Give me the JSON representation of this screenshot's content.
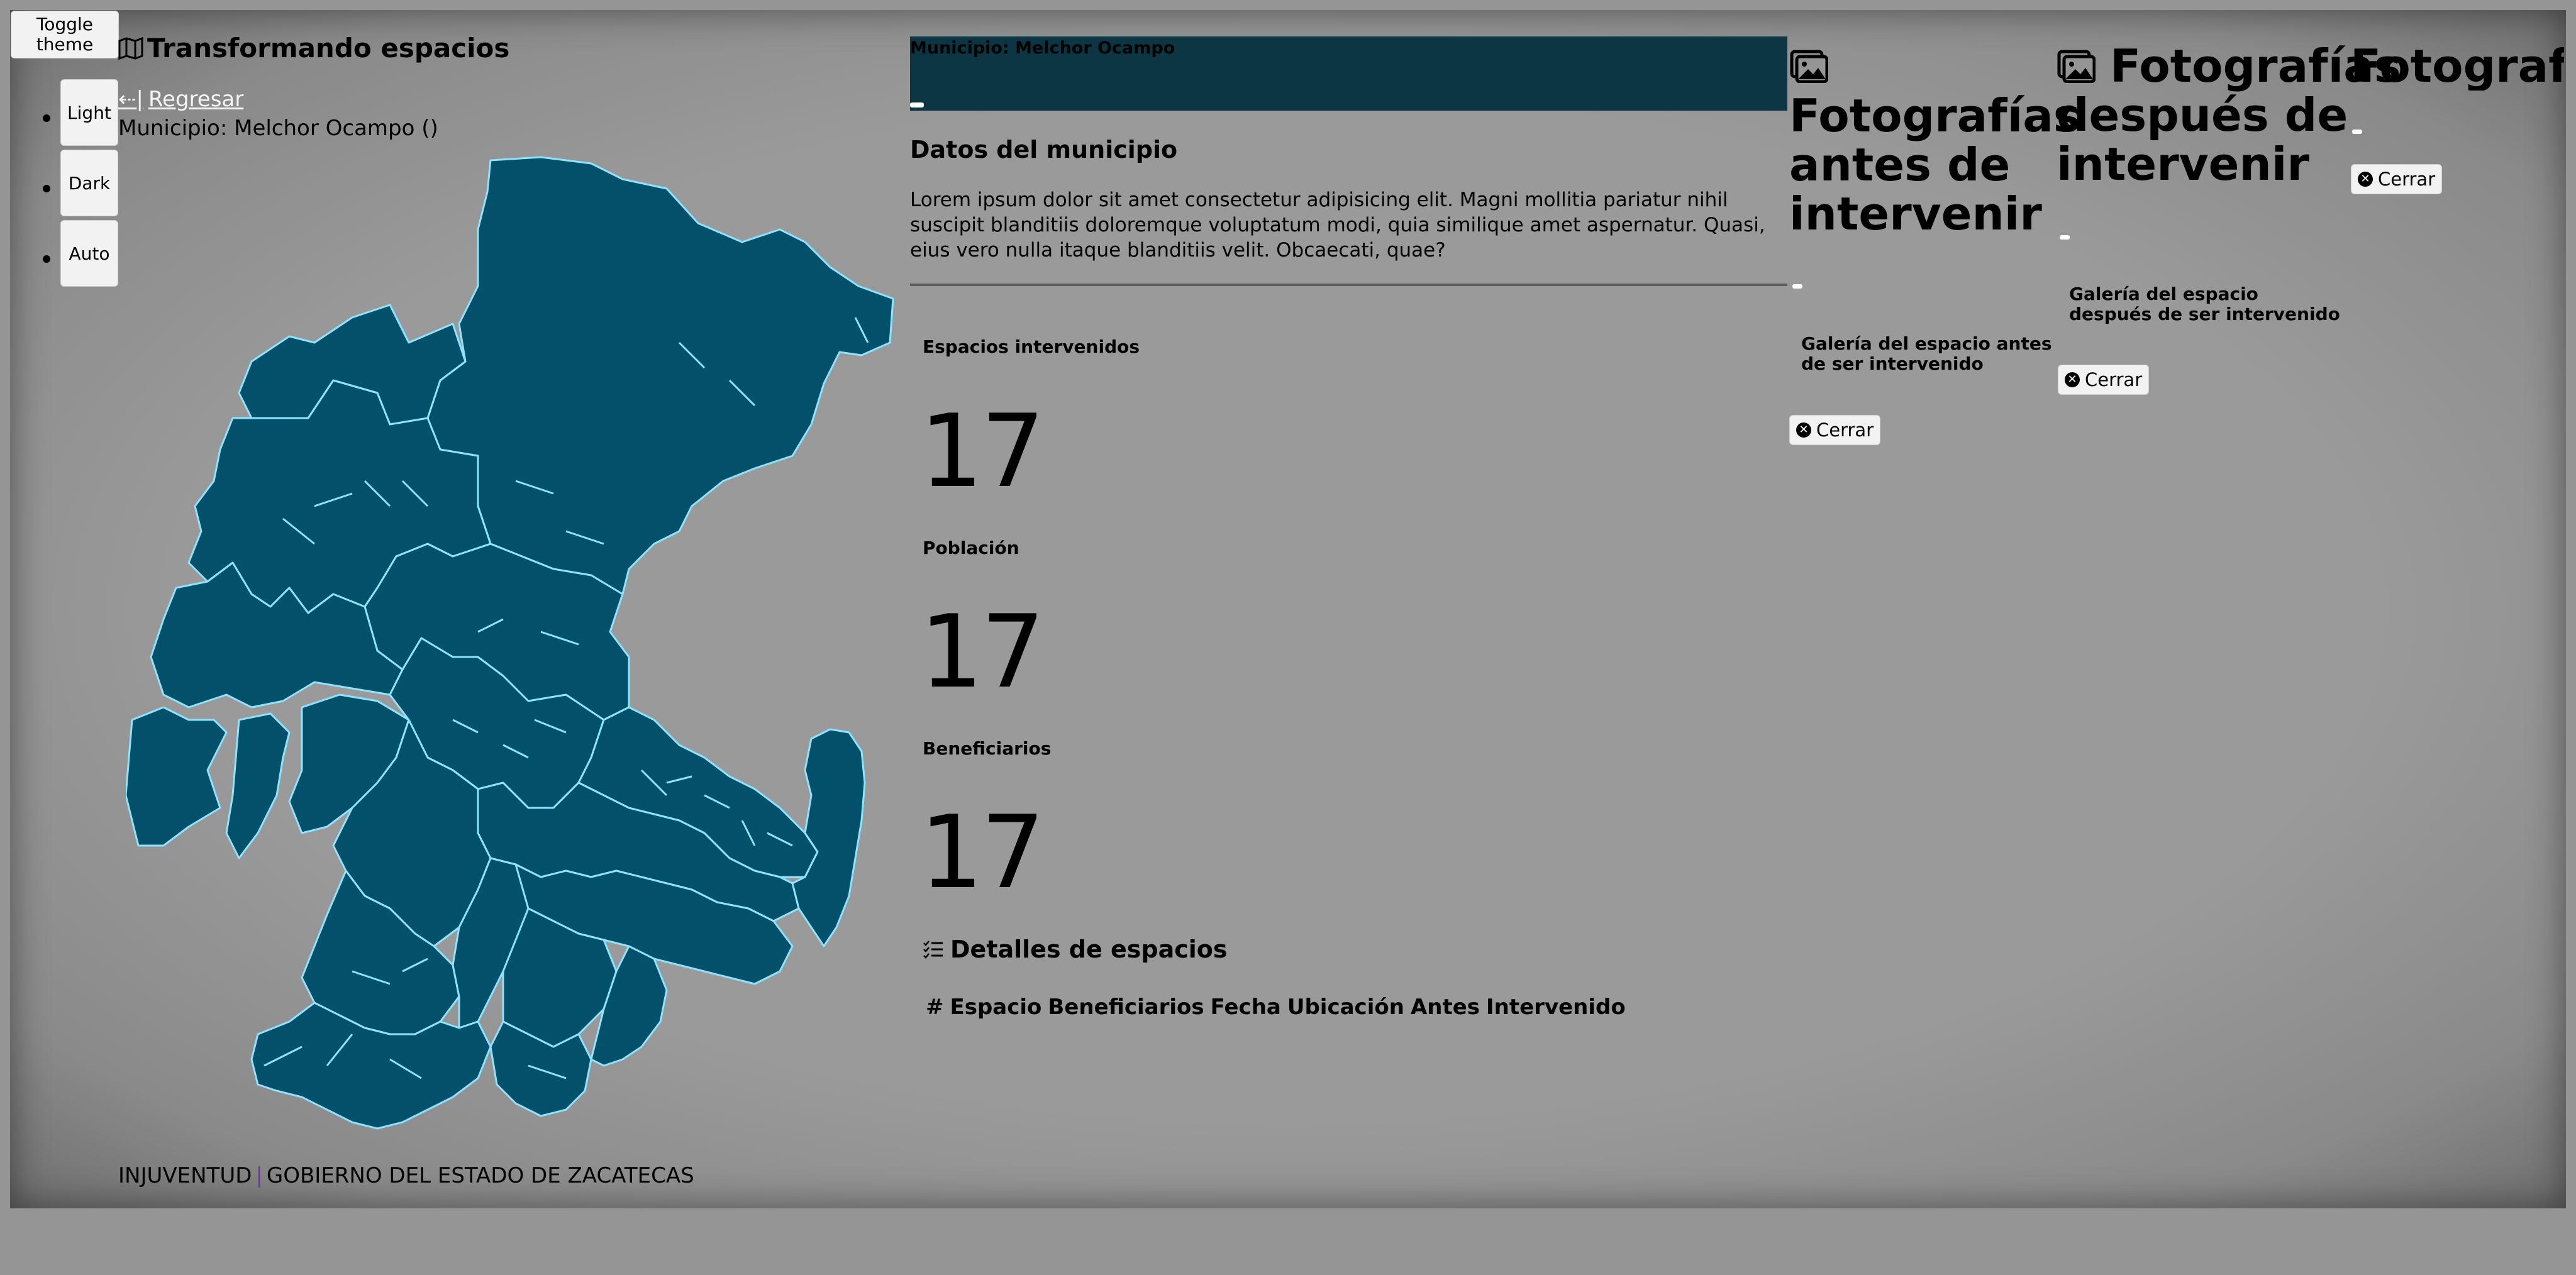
{
  "theme": {
    "toggle_label": "Toggle theme",
    "options": [
      "Light",
      "Dark",
      "Auto"
    ]
  },
  "header": {
    "app_title": "Transformando espacios",
    "back_label": "Regresar",
    "municipality_line": "Municipio: Melchor Ocampo ()"
  },
  "map": {
    "fill_color": "#02506a",
    "stroke_color": "#8fe3ff"
  },
  "banner": {
    "text": "Municipio: Melchor Ocampo",
    "color": "#0c3644"
  },
  "datos": {
    "title": "Datos del municipio",
    "description": "Lorem ipsum dolor sit amet consectetur adipisicing elit. Magni mollitia pariatur nihil suscipit blanditiis doloremque voluptatum modi, quia similique amet aspernatur. Quasi, eius vero nulla itaque blanditiis velit. Obcaecati, quae?"
  },
  "stats": [
    {
      "label": "Espacios intervenidos",
      "value": "17"
    },
    {
      "label": "Población",
      "value": "17"
    },
    {
      "label": "Beneficiarios",
      "value": "17"
    }
  ],
  "details": {
    "title": "Detalles de espacios",
    "columns": [
      "#",
      "Espacio",
      "Beneficiarios",
      "Fecha",
      "Ubicación",
      "Antes",
      "Intervenido"
    ]
  },
  "gallery_before": {
    "title": "Fotografías antes de intervenir",
    "subtitle": "Galería del espacio antes de ser intervenido",
    "close_label": "Cerrar"
  },
  "gallery_after": {
    "title": "Fotografías después de intervenir",
    "subtitle": "Galería del espacio después de ser intervenido",
    "close_label": "Cerrar"
  },
  "gallery_third": {
    "title": "Fotografía",
    "close_label": "Cerrar"
  },
  "footer": {
    "org": "INJUVENTUD",
    "separator": "|",
    "government": "GOBIERNO DEL ESTADO DE ZACATECAS"
  }
}
